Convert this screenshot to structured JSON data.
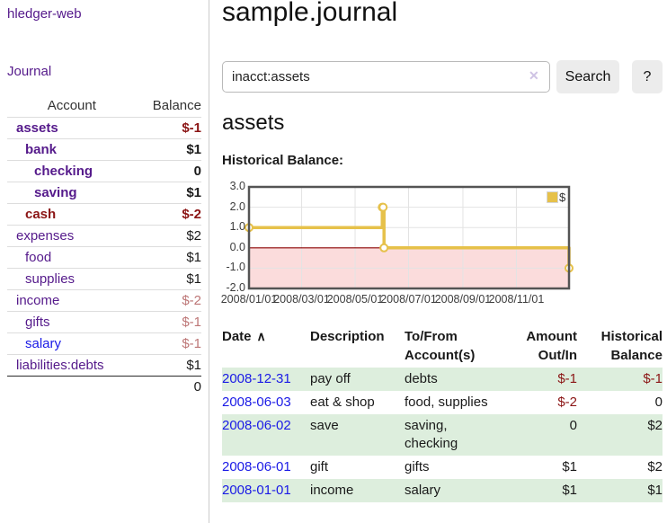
{
  "app": {
    "brand": "hledger-web",
    "nav_journal": "Journal"
  },
  "colors": {
    "link_purple": "#551a8b",
    "link_blue": "#1a1ae6",
    "negative_strong": "#8b1515",
    "negative_light": "#bd7676",
    "text_black": "#1a1a1a",
    "row_green": "#ddeedd",
    "chart_gold": "#e6c14a"
  },
  "sidebar": {
    "header": {
      "account": "Account",
      "balance": "Balance"
    },
    "items": [
      {
        "label": "assets",
        "balance": "$-1",
        "label_color": "#551a8b",
        "balance_color": "#8b1515"
      },
      {
        "label": "bank",
        "balance": "$1",
        "label_color": "#551a8b",
        "balance_color": "#1a1a1a"
      },
      {
        "label": "checking",
        "balance": "0",
        "label_color": "#551a8b",
        "balance_color": "#1a1a1a"
      },
      {
        "label": "saving",
        "balance": "$1",
        "label_color": "#551a8b",
        "balance_color": "#1a1a1a"
      },
      {
        "label": "cash",
        "balance": "$-2",
        "label_color": "#8b1515",
        "balance_color": "#8b1515"
      },
      {
        "label": "expenses",
        "balance": "$2",
        "label_color": "#551a8b",
        "balance_color": "#1a1a1a"
      },
      {
        "label": "food",
        "balance": "$1",
        "label_color": "#551a8b",
        "balance_color": "#1a1a1a"
      },
      {
        "label": "supplies",
        "balance": "$1",
        "label_color": "#551a8b",
        "balance_color": "#1a1a1a"
      },
      {
        "label": "income",
        "balance": "$-2",
        "label_color": "#551a8b",
        "balance_color": "#bd7676"
      },
      {
        "label": "gifts",
        "balance": "$-1",
        "label_color": "#551a8b",
        "balance_color": "#bd7676"
      },
      {
        "label": "salary",
        "balance": "$-1",
        "label_color": "#1a1ae6",
        "balance_color": "#bd7676"
      },
      {
        "label": "liabilities:debts",
        "balance": "$1",
        "label_color": "#551a8b",
        "balance_color": "#1a1a1a"
      }
    ],
    "total_balance": "0"
  },
  "main": {
    "title": "sample.journal",
    "search": {
      "value": "inacct:assets",
      "clear_icon": "✕",
      "button_label": "Search",
      "help_label": "?"
    },
    "section_title": "assets",
    "chart_label": "Historical Balance:"
  },
  "chart_data": {
    "type": "line",
    "title": "Historical Balance:",
    "step": true,
    "legend": "$",
    "legend_position": "top-right",
    "x": [
      "2008-01-01",
      "2008-06-01",
      "2008-06-02",
      "2008-06-03",
      "2008-12-31"
    ],
    "y": [
      1,
      2,
      2,
      0,
      -1
    ],
    "xrange": [
      "2008-01-01",
      "2008-12-31"
    ],
    "ylim": [
      -2,
      3
    ],
    "yticks": [
      3,
      2,
      1,
      0,
      -1,
      -2
    ],
    "xticks": [
      "2008/01/01",
      "2008/03/01",
      "2008/05/01",
      "2008/07/01",
      "2008/09/01",
      "2008/11/01"
    ],
    "grid": true,
    "negative_region_shaded": true,
    "colors": {
      "line": "#e6c14a",
      "marker_fill": "#ffffff",
      "negative_region": "#f28080",
      "zero_line": "#8b0000",
      "grid": "#e3e3e3",
      "border": "#545454"
    }
  },
  "table": {
    "sort_icon": "∧",
    "columns": [
      "Date",
      "Description",
      "To/From Account(s)",
      "Amount Out/In",
      "Historical Balance"
    ],
    "rows": [
      {
        "date": "2008-12-31",
        "description": "pay off",
        "accounts": "debts",
        "amount": "$-1",
        "amount_color": "#8b1515",
        "balance": "$-1",
        "balance_color": "#8b1515"
      },
      {
        "date": "2008-06-03",
        "description": "eat & shop",
        "accounts": "food, supplies",
        "amount": "$-2",
        "amount_color": "#8b1515",
        "balance": "0",
        "balance_color": "#1a1a1a"
      },
      {
        "date": "2008-06-02",
        "description": "save",
        "accounts": "saving, checking",
        "amount": "0",
        "amount_color": "#1a1a1a",
        "balance": "$2",
        "balance_color": "#1a1a1a"
      },
      {
        "date": "2008-06-01",
        "description": "gift",
        "accounts": "gifts",
        "amount": "$1",
        "amount_color": "#1a1a1a",
        "balance": "$2",
        "balance_color": "#1a1a1a"
      },
      {
        "date": "2008-01-01",
        "description": "income",
        "accounts": "salary",
        "amount": "$1",
        "amount_color": "#1a1a1a",
        "balance": "$1",
        "balance_color": "#1a1a1a"
      }
    ]
  }
}
